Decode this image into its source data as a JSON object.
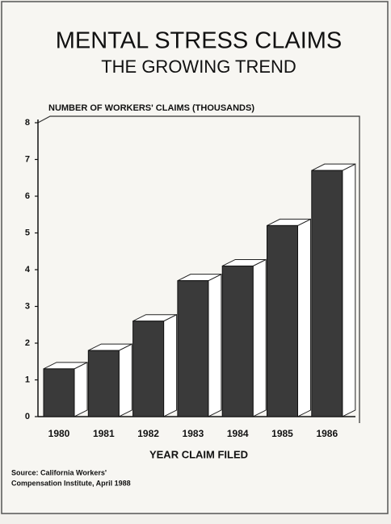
{
  "chart_data": {
    "type": "bar3d",
    "title": "MENTAL STRESS CLAIMS",
    "subtitle": "THE GROWING TREND",
    "ylabel": "NUMBER OF WORKERS' CLAIMS (THOUSANDS)",
    "xlabel": "YEAR CLAIM FILED",
    "source": [
      "Source: California Workers'",
      "Compensation Institute, April 1988"
    ],
    "categories": [
      "1980",
      "1981",
      "1982",
      "1983",
      "1984",
      "1985",
      "1986"
    ],
    "values": [
      1.3,
      1.8,
      2.6,
      3.7,
      4.1,
      5.2,
      6.7
    ],
    "color": "#3a3a3a",
    "ylim": [
      0,
      8
    ],
    "yticks": [
      0,
      1,
      2,
      3,
      4,
      5,
      6,
      7,
      8
    ],
    "grid": false
  }
}
